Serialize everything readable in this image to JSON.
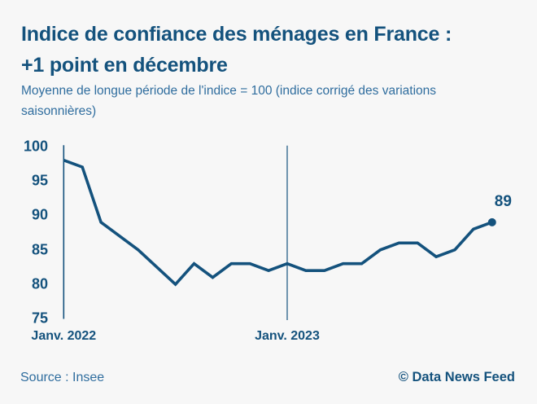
{
  "colors": {
    "background": "#f7f7f7",
    "dark_blue": "#14527d",
    "medium_blue": "#2f6d9e",
    "line_color": "#14527d"
  },
  "header": {
    "title_lines": [
      "Indice de confiance des ménages en France :",
      "+1 point en décembre"
    ],
    "subtitle": "Moyenne de longue période de l'indice = 100 (indice corrigé des variations saisonnières)"
  },
  "chart_data": {
    "type": "line",
    "title": "Indice de confiance des ménages en France : +1 point en décembre",
    "subtitle": "Moyenne de longue période de l'indice = 100 (indice corrigé des variations saisonnières)",
    "series": [
      {
        "name": "Indice de confiance des ménages",
        "start": "Janv. 2022",
        "frequency": "monthly",
        "values": [
          98,
          97,
          89,
          87,
          85,
          82.5,
          80,
          83,
          81,
          83,
          83,
          82,
          83,
          82,
          82,
          83,
          83,
          85,
          86,
          86,
          84,
          85,
          88,
          89
        ]
      }
    ],
    "ylim": [
      75,
      100
    ],
    "yticks": [
      100,
      95,
      90,
      85,
      80,
      75
    ],
    "x_tick_labels": [
      {
        "label": "Janv. 2022",
        "month_index": 0
      },
      {
        "label": "Janv. 2023",
        "month_index": 12
      }
    ],
    "vline_month_index": 12,
    "end_label": "89",
    "grid": "off",
    "legend": "none",
    "line_color": "#14527d"
  },
  "footer": {
    "source": "Source : Insee",
    "credit": "© Data News Feed"
  }
}
